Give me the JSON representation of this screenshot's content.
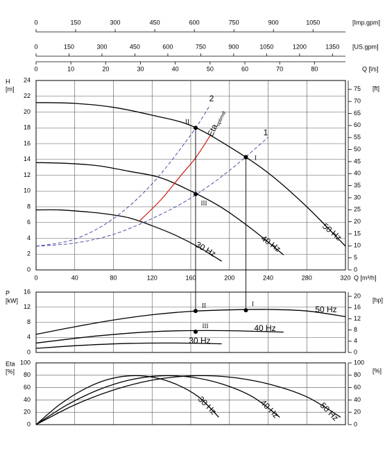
{
  "chart_data": [
    {
      "type": "line",
      "flow_scales": [
        {
          "label": "[Imp.gpm]",
          "xlim": [
            0,
            1173
          ],
          "xticks": [
            0,
            150,
            300,
            450,
            600,
            750,
            900,
            1050
          ]
        },
        {
          "label": "[US.gpm]",
          "xlim": [
            0,
            1409
          ],
          "xticks": [
            0,
            150,
            300,
            450,
            600,
            750,
            900,
            1050,
            1200,
            1350
          ]
        },
        {
          "label": "Q [l/s]",
          "xlim": [
            0,
            88.9
          ],
          "xticks": [
            0,
            10,
            20,
            30,
            40,
            50,
            60,
            70,
            80
          ]
        }
      ],
      "y_label": "H",
      "y_unit": "[m]",
      "y2_unit": "[ft]",
      "x_label": "Q [m³/h]",
      "xlim": [
        0,
        320
      ],
      "xticks": [
        0,
        40,
        80,
        120,
        160,
        200,
        240,
        280,
        320
      ],
      "show_xtick_labels": true,
      "ylim": [
        0,
        24
      ],
      "yticks": [
        0,
        2,
        4,
        6,
        8,
        10,
        12,
        14,
        16,
        18,
        20,
        22,
        24
      ],
      "y2lim": [
        0,
        78.7
      ],
      "y2ticks": [
        0,
        5,
        10,
        15,
        20,
        25,
        30,
        35,
        40,
        45,
        50,
        55,
        60,
        65,
        70,
        75
      ],
      "grid": true,
      "series": [
        {
          "name": "50 Hz",
          "color": "#000000",
          "x": [
            0,
            40,
            80,
            120,
            160,
            200,
            240,
            280,
            320
          ],
          "values": [
            21.2,
            21.1,
            20.6,
            19.6,
            18.3,
            15.6,
            12.3,
            8.0,
            3.0
          ]
        },
        {
          "name": "40 Hz",
          "color": "#000000",
          "x": [
            0,
            32,
            64,
            96,
            128,
            160,
            192,
            224,
            256
          ],
          "values": [
            13.6,
            13.5,
            13.2,
            12.5,
            11.7,
            10.0,
            7.9,
            5.1,
            1.9
          ]
        },
        {
          "name": "30 Hz",
          "color": "#000000",
          "x": [
            0,
            24,
            48,
            72,
            96,
            120,
            144,
            168,
            192
          ],
          "values": [
            7.6,
            7.6,
            7.4,
            7.1,
            6.6,
            5.6,
            4.4,
            2.9,
            1.1
          ]
        },
        {
          "name": "1",
          "color": "#3a3aa0",
          "dashed": true,
          "x": [
            0,
            40,
            80,
            120,
            160,
            200,
            240
          ],
          "values": [
            3.0,
            3.4,
            4.5,
            6.5,
            9.1,
            12.6,
            16.8
          ]
        },
        {
          "name": "2",
          "color": "#3a3aa0",
          "dashed": true,
          "x": [
            0,
            40,
            80,
            120,
            160,
            180
          ],
          "values": [
            3.0,
            3.9,
            6.5,
            10.9,
            17.1,
            20.9
          ]
        },
        {
          "name": "Eta",
          "name_sub": "optimal",
          "color": "#d42020",
          "x": [
            107,
            130,
            150,
            165,
            180
          ],
          "values": [
            6.2,
            9.0,
            12.0,
            14.2,
            17.0
          ]
        }
      ],
      "points": [
        {
          "label": "I",
          "x": 217,
          "y": 14.3
        },
        {
          "label": "II",
          "x": 165,
          "y": 18.0
        },
        {
          "label": "III",
          "x": 165,
          "y": 9.6
        }
      ]
    },
    {
      "type": "line",
      "y_label": "P",
      "y_unit": "[kW]",
      "y2_unit": "[hp]",
      "xlim": [
        0,
        320
      ],
      "xticks": [
        0,
        40,
        80,
        120,
        160,
        200,
        240,
        280,
        320
      ],
      "show_xtick_labels": false,
      "ylim": [
        0,
        16
      ],
      "yticks": [
        0,
        4,
        8,
        12,
        16
      ],
      "y2lim": [
        0,
        21.5
      ],
      "y2ticks": [
        0,
        4,
        8,
        12,
        16,
        20
      ],
      "grid": true,
      "series": [
        {
          "name": "50 Hz",
          "color": "#000000",
          "x": [
            0,
            40,
            80,
            120,
            160,
            200,
            240,
            280,
            320
          ],
          "values": [
            4.8,
            6.8,
            8.6,
            10.0,
            10.9,
            11.3,
            11.4,
            11.0,
            9.5
          ]
        },
        {
          "name": "40 Hz",
          "color": "#000000",
          "x": [
            0,
            64,
            128,
            192,
            256
          ],
          "values": [
            2.5,
            4.4,
            5.6,
            5.8,
            5.4
          ]
        },
        {
          "name": "30 Hz",
          "color": "#000000",
          "x": [
            0,
            48,
            96,
            144,
            192
          ],
          "values": [
            1.1,
            1.9,
            2.4,
            2.5,
            2.3
          ]
        }
      ],
      "points": [
        {
          "label": "I",
          "x": 217,
          "y": 11.2
        },
        {
          "label": "II",
          "x": 165,
          "y": 11.0
        },
        {
          "label": "III",
          "x": 165,
          "y": 5.5
        }
      ]
    },
    {
      "type": "line",
      "y_label": "Eta",
      "y_unit": "[%]",
      "y2_unit": "[%]",
      "xlim": [
        0,
        320
      ],
      "xticks": [
        0,
        40,
        80,
        120,
        160,
        200,
        240,
        280,
        320
      ],
      "show_xtick_labels": false,
      "ylim": [
        0,
        100
      ],
      "yticks": [
        0,
        20,
        40,
        60,
        80,
        100
      ],
      "y2lim": [
        0,
        100
      ],
      "y2ticks": [
        0,
        20,
        40,
        60,
        80,
        100
      ],
      "grid": true,
      "series": [
        {
          "name": "50 Hz",
          "color": "#000000",
          "x": [
            0,
            40,
            80,
            120,
            160,
            200,
            240,
            280,
            315
          ],
          "values": [
            0,
            32,
            56,
            72,
            79,
            77,
            66,
            45,
            12
          ]
        },
        {
          "name": "40 Hz",
          "color": "#000000",
          "x": [
            0,
            32,
            64,
            96,
            128,
            160,
            192,
            224,
            252
          ],
          "values": [
            0,
            32,
            56,
            72,
            79,
            77,
            66,
            45,
            12
          ]
        },
        {
          "name": "30 Hz",
          "color": "#000000",
          "x": [
            0,
            24,
            48,
            72,
            96,
            120,
            144,
            168,
            189
          ],
          "values": [
            0,
            32,
            56,
            72,
            79,
            77,
            66,
            45,
            12
          ]
        }
      ]
    }
  ]
}
